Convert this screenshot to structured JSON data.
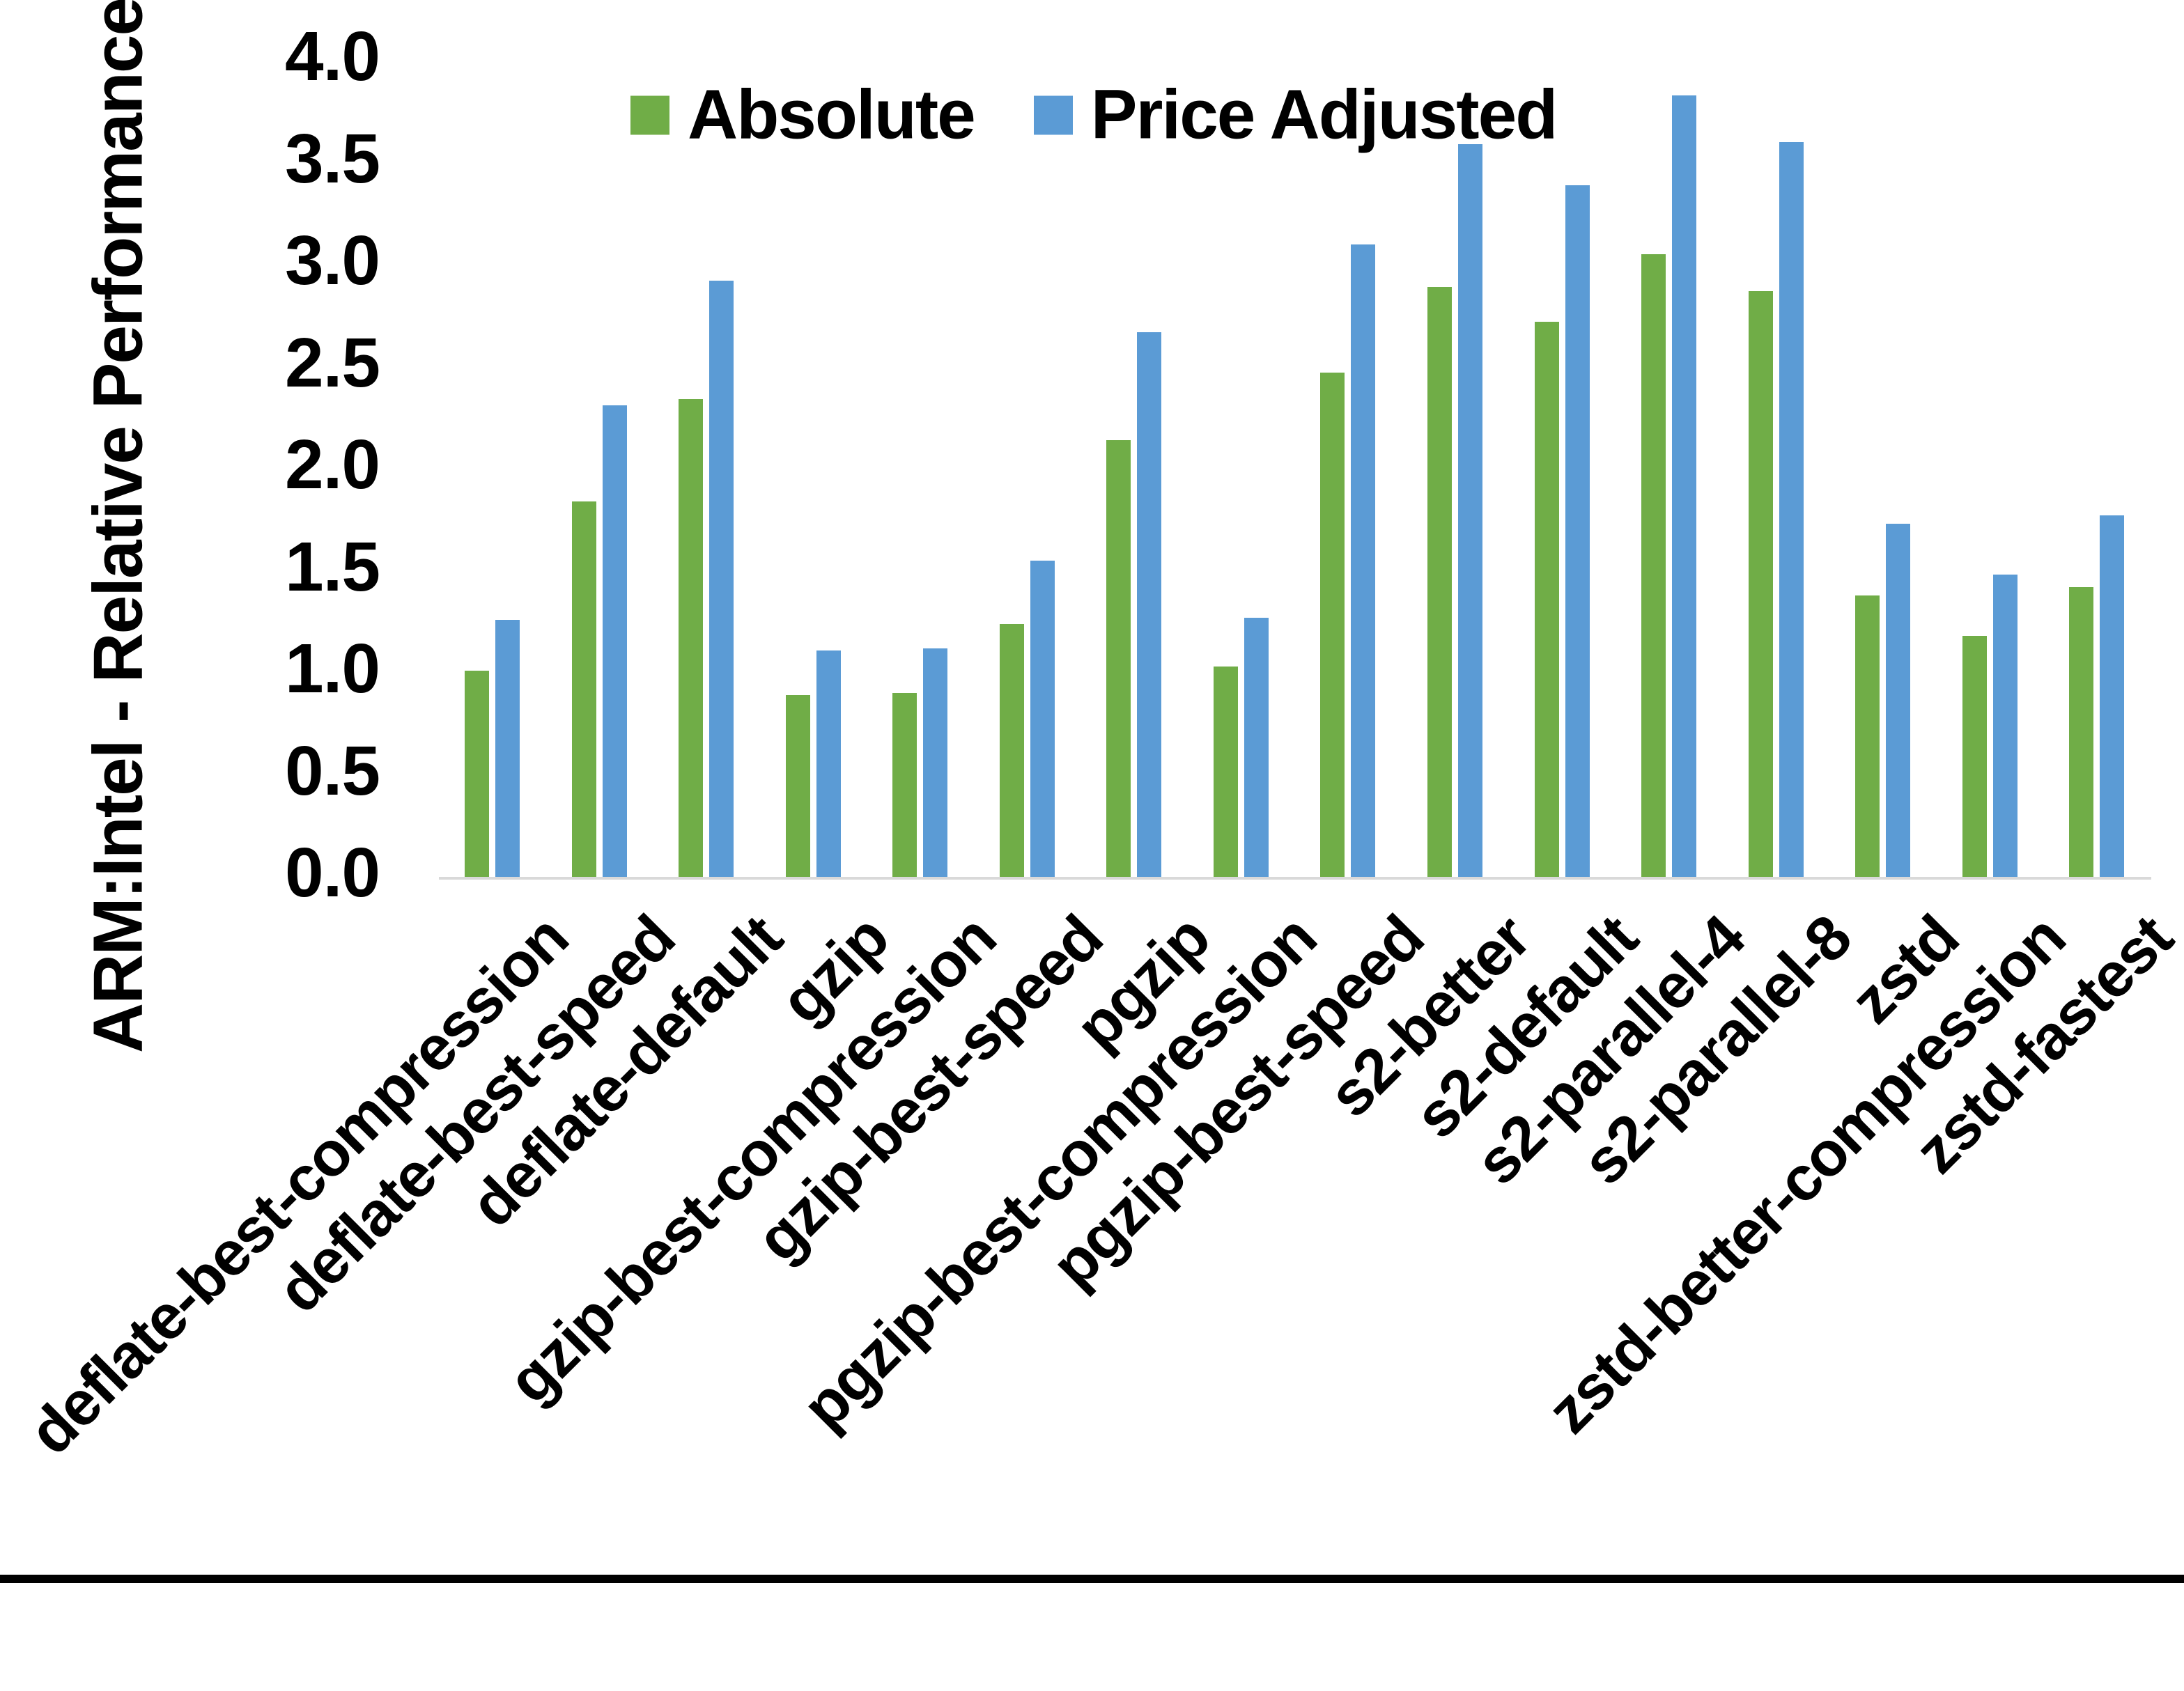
{
  "chart_data": {
    "type": "bar",
    "title": "",
    "ylabel": "ARM:Intel - Relative Performance",
    "xlabel": "",
    "ylim": [
      0.0,
      4.0
    ],
    "ytick_step": 0.5,
    "ytick_labels": [
      "0.0",
      "0.5",
      "1.0",
      "1.5",
      "2.0",
      "2.5",
      "3.0",
      "3.5",
      "4.0"
    ],
    "grid": false,
    "legend_position": "top",
    "background_color": "#ffffff",
    "axis_line_color": "#d9d9d9",
    "bottom_border_color": "#000000",
    "categories": [
      "deflate-best-compression",
      "deflate-best-speed",
      "deflate-default",
      "gzip",
      "gzip-best-compression",
      "gzip-best-speed",
      "pgzip",
      "pgzip-best-compression",
      "pgzip-best-speed",
      "s2-better",
      "s2-default",
      "s2-parallel-4",
      "s2-parallel-8",
      "zstd",
      "zstd-better-compression",
      "zstd-fastest"
    ],
    "series": [
      {
        "name": "Absolute",
        "color": "#70AD47",
        "values": [
          1.01,
          1.84,
          2.34,
          0.89,
          0.9,
          1.24,
          2.14,
          1.03,
          2.47,
          2.89,
          2.72,
          3.05,
          2.87,
          1.38,
          1.18,
          1.42
        ]
      },
      {
        "name": "Price Adjusted",
        "color": "#5B9BD5",
        "values": [
          1.26,
          2.31,
          2.92,
          1.11,
          1.12,
          1.55,
          2.67,
          1.27,
          3.1,
          3.59,
          3.39,
          3.83,
          3.6,
          1.73,
          1.48,
          1.77
        ]
      }
    ]
  }
}
